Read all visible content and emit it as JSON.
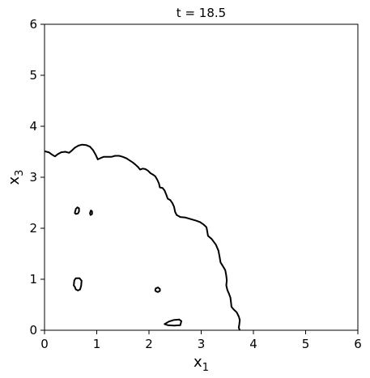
{
  "chart_data": {
    "type": "contour",
    "title": "t = 18.5",
    "xlabel": {
      "base": "x",
      "sub": "1"
    },
    "ylabel": {
      "base": "x",
      "sub": "3"
    },
    "xlim": [
      0,
      6
    ],
    "ylim": [
      0,
      6
    ],
    "xticks": [
      "0",
      "1",
      "2",
      "3",
      "4",
      "5",
      "6"
    ],
    "yticks": [
      "0",
      "1",
      "2",
      "3",
      "4",
      "5",
      "6"
    ],
    "grid": false,
    "line_color": "#000000",
    "contours": [
      {
        "name": "outer-front",
        "closed": false,
        "points": [
          [
            0.0,
            3.51
          ],
          [
            0.08,
            3.49
          ],
          [
            0.15,
            3.44
          ],
          [
            0.2,
            3.41
          ],
          [
            0.25,
            3.45
          ],
          [
            0.32,
            3.49
          ],
          [
            0.4,
            3.5
          ],
          [
            0.47,
            3.48
          ],
          [
            0.52,
            3.52
          ],
          [
            0.58,
            3.58
          ],
          [
            0.65,
            3.62
          ],
          [
            0.72,
            3.64
          ],
          [
            0.8,
            3.63
          ],
          [
            0.87,
            3.6
          ],
          [
            0.93,
            3.53
          ],
          [
            0.98,
            3.44
          ],
          [
            1.02,
            3.35
          ],
          [
            1.08,
            3.38
          ],
          [
            1.13,
            3.4
          ],
          [
            1.2,
            3.4
          ],
          [
            1.28,
            3.4
          ],
          [
            1.35,
            3.42
          ],
          [
            1.43,
            3.42
          ],
          [
            1.5,
            3.4
          ],
          [
            1.57,
            3.37
          ],
          [
            1.63,
            3.33
          ],
          [
            1.69,
            3.29
          ],
          [
            1.74,
            3.25
          ],
          [
            1.79,
            3.2
          ],
          [
            1.83,
            3.15
          ],
          [
            1.88,
            3.17
          ],
          [
            1.93,
            3.16
          ],
          [
            1.98,
            3.13
          ],
          [
            2.03,
            3.08
          ],
          [
            2.08,
            3.05
          ],
          [
            2.12,
            3.02
          ],
          [
            2.16,
            2.95
          ],
          [
            2.19,
            2.88
          ],
          [
            2.21,
            2.8
          ],
          [
            2.26,
            2.79
          ],
          [
            2.3,
            2.74
          ],
          [
            2.33,
            2.66
          ],
          [
            2.36,
            2.58
          ],
          [
            2.41,
            2.55
          ],
          [
            2.45,
            2.49
          ],
          [
            2.48,
            2.42
          ],
          [
            2.5,
            2.32
          ],
          [
            2.53,
            2.26
          ],
          [
            2.6,
            2.22
          ],
          [
            2.7,
            2.21
          ],
          [
            2.8,
            2.18
          ],
          [
            2.9,
            2.15
          ],
          [
            2.98,
            2.12
          ],
          [
            3.05,
            2.07
          ],
          [
            3.1,
            2.02
          ],
          [
            3.12,
            1.92
          ],
          [
            3.13,
            1.85
          ],
          [
            3.2,
            1.79
          ],
          [
            3.28,
            1.68
          ],
          [
            3.33,
            1.56
          ],
          [
            3.35,
            1.45
          ],
          [
            3.37,
            1.33
          ],
          [
            3.42,
            1.25
          ],
          [
            3.46,
            1.18
          ],
          [
            3.48,
            1.07
          ],
          [
            3.49,
            0.98
          ],
          [
            3.48,
            0.88
          ],
          [
            3.5,
            0.79
          ],
          [
            3.53,
            0.72
          ],
          [
            3.56,
            0.64
          ],
          [
            3.57,
            0.55
          ],
          [
            3.58,
            0.46
          ],
          [
            3.62,
            0.41
          ],
          [
            3.68,
            0.35
          ],
          [
            3.72,
            0.27
          ],
          [
            3.74,
            0.2
          ],
          [
            3.73,
            0.12
          ],
          [
            3.72,
            0.05
          ],
          [
            3.74,
            0.0
          ]
        ]
      },
      {
        "name": "island-1",
        "closed": true,
        "points": [
          [
            0.58,
            2.3
          ],
          [
            0.6,
            2.38
          ],
          [
            0.63,
            2.41
          ],
          [
            0.66,
            2.39
          ],
          [
            0.66,
            2.33
          ],
          [
            0.64,
            2.29
          ],
          [
            0.6,
            2.28
          ]
        ]
      },
      {
        "name": "island-2",
        "closed": true,
        "points": [
          [
            0.88,
            2.26
          ],
          [
            0.87,
            2.3
          ],
          [
            0.89,
            2.35
          ],
          [
            0.91,
            2.33
          ],
          [
            0.91,
            2.28
          ]
        ]
      },
      {
        "name": "island-3",
        "closed": true,
        "points": [
          [
            0.56,
            0.88
          ],
          [
            0.57,
            0.98
          ],
          [
            0.6,
            1.02
          ],
          [
            0.67,
            1.02
          ],
          [
            0.71,
            0.97
          ],
          [
            0.7,
            0.87
          ],
          [
            0.68,
            0.8
          ],
          [
            0.64,
            0.78
          ],
          [
            0.6,
            0.8
          ],
          [
            0.58,
            0.85
          ]
        ]
      },
      {
        "name": "island-4",
        "closed": true,
        "points": [
          [
            2.12,
            0.78
          ],
          [
            2.13,
            0.82
          ],
          [
            2.17,
            0.84
          ],
          [
            2.21,
            0.81
          ],
          [
            2.21,
            0.77
          ],
          [
            2.17,
            0.75
          ],
          [
            2.14,
            0.76
          ]
        ]
      },
      {
        "name": "island-5",
        "closed": true,
        "points": [
          [
            2.3,
            0.12
          ],
          [
            2.38,
            0.17
          ],
          [
            2.47,
            0.2
          ],
          [
            2.58,
            0.21
          ],
          [
            2.62,
            0.18
          ],
          [
            2.6,
            0.1
          ],
          [
            2.48,
            0.09
          ],
          [
            2.36,
            0.1
          ]
        ]
      }
    ]
  }
}
